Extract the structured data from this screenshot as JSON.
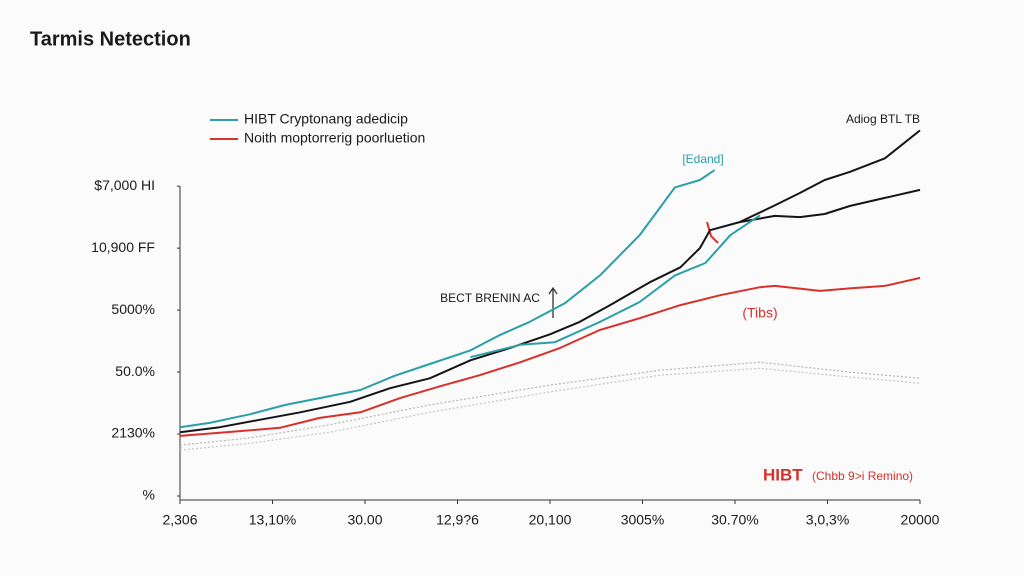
{
  "chart_data": {
    "type": "line",
    "title": "Tarmis Netection",
    "xlim": [
      0,
      8
    ],
    "xticks": [
      {
        "value": 0,
        "label": "2,306"
      },
      {
        "value": 1,
        "label": "13,10%"
      },
      {
        "value": 2,
        "label": "30.00"
      },
      {
        "value": 3,
        "label": "12,9?6"
      },
      {
        "value": 4,
        "label": "20,100"
      },
      {
        "value": 5,
        "label": "3005%"
      },
      {
        "value": 6,
        "label": "30.70%"
      },
      {
        "value": 7,
        "label": "3,0,3%"
      },
      {
        "value": 8,
        "label": "20000"
      }
    ],
    "ylim": [
      0,
      6.1
    ],
    "yticks": [
      {
        "value": 0,
        "label": "%"
      },
      {
        "value": 1,
        "label": "2130%"
      },
      {
        "value": 2,
        "label": "50.0%"
      },
      {
        "value": 3,
        "label": "5000%"
      },
      {
        "value": 4,
        "label": "10,900 FF"
      },
      {
        "value": 5,
        "label": "$7,000 HI"
      }
    ],
    "series": [
      {
        "name": "HIBT Cryptonang adedicip",
        "color": "#2b9fa8",
        "x": [
          0,
          0.32,
          0.76,
          1.14,
          1.51,
          1.95,
          2.32,
          2.7,
          3.14,
          3.46,
          3.78,
          4.16,
          4.54,
          4.97,
          5.35,
          5.62,
          5.78
        ],
        "values": [
          1.11,
          1.18,
          1.32,
          1.47,
          1.58,
          1.71,
          1.94,
          2.13,
          2.35,
          2.6,
          2.81,
          3.11,
          3.56,
          4.21,
          4.98,
          5.1,
          5.26
        ]
      },
      {
        "name": "Noith moptorrerig poorluetion",
        "color": "#d8312b",
        "x": [
          0,
          0.43,
          1.08,
          1.51,
          1.95,
          2.38,
          2.81,
          3.24,
          3.68,
          4.11,
          4.54,
          4.97,
          5.41,
          5.84,
          6.27,
          6.43,
          6.92,
          7.24,
          7.62,
          8.0
        ],
        "values": [
          0.97,
          1.02,
          1.1,
          1.26,
          1.35,
          1.58,
          1.77,
          1.95,
          2.16,
          2.39,
          2.68,
          2.87,
          3.08,
          3.24,
          3.37,
          3.39,
          3.31,
          3.35,
          3.39,
          3.52
        ]
      },
      {
        "color": "#2b9fa8",
        "x": [
          3.14,
          3.68,
          4.05,
          4.54,
          4.97,
          5.35,
          5.68,
          5.95,
          6.27
        ],
        "values": [
          2.24,
          2.44,
          2.48,
          2.81,
          3.13,
          3.56,
          3.76,
          4.21,
          4.53
        ]
      },
      {
        "color": "#151515",
        "x": [
          0,
          0.43,
          0.86,
          1.3,
          1.84,
          2.27,
          2.7,
          3.14,
          3.57,
          4.0,
          4.32,
          4.65,
          5.08,
          5.41,
          5.62,
          5.73,
          6.05,
          6.43,
          6.7,
          6.97,
          7.24,
          7.62,
          8.0
        ],
        "values": [
          1.03,
          1.11,
          1.23,
          1.35,
          1.52,
          1.74,
          1.9,
          2.19,
          2.39,
          2.61,
          2.81,
          3.08,
          3.45,
          3.69,
          4.0,
          4.29,
          4.42,
          4.69,
          4.89,
          5.1,
          5.23,
          5.45,
          5.9
        ]
      },
      {
        "color": "#151515",
        "x": [
          6.05,
          6.43,
          6.7,
          6.97,
          7.24,
          7.62,
          8.0
        ],
        "values": [
          4.42,
          4.52,
          4.5,
          4.55,
          4.68,
          4.81,
          4.94
        ]
      },
      {
        "color": "#b5b5b5",
        "dashed": true,
        "x": [
          0,
          0.76,
          1.62,
          2.7,
          4.0,
          5.19,
          6.27,
          7.24,
          8.0
        ],
        "values": [
          0.82,
          0.94,
          1.15,
          1.47,
          1.79,
          2.03,
          2.16,
          2.0,
          1.9
        ]
      },
      {
        "color": "#c4c4c4",
        "dashed": true,
        "x": [
          0,
          0.76,
          1.62,
          2.7,
          4.0,
          5.19,
          6.27,
          7.24,
          8.0
        ],
        "values": [
          0.74,
          0.85,
          1.03,
          1.35,
          1.68,
          1.95,
          2.06,
          1.92,
          1.82
        ]
      }
    ],
    "annotations": [
      {
        "text": "Adiog BTL TB",
        "color": "#1a1a1a"
      },
      {
        "text": "[Edand]",
        "color": "#2b9fa8"
      },
      {
        "text": "BECT BRENIN AC",
        "color": "#1a1a1a"
      },
      {
        "text": "(Tibs)",
        "color": "#d8312b"
      },
      {
        "text": "HIBT",
        "color": "#d8312b"
      },
      {
        "text": "(Chbb 9>i Remino)",
        "color": "#d8312b"
      }
    ]
  }
}
